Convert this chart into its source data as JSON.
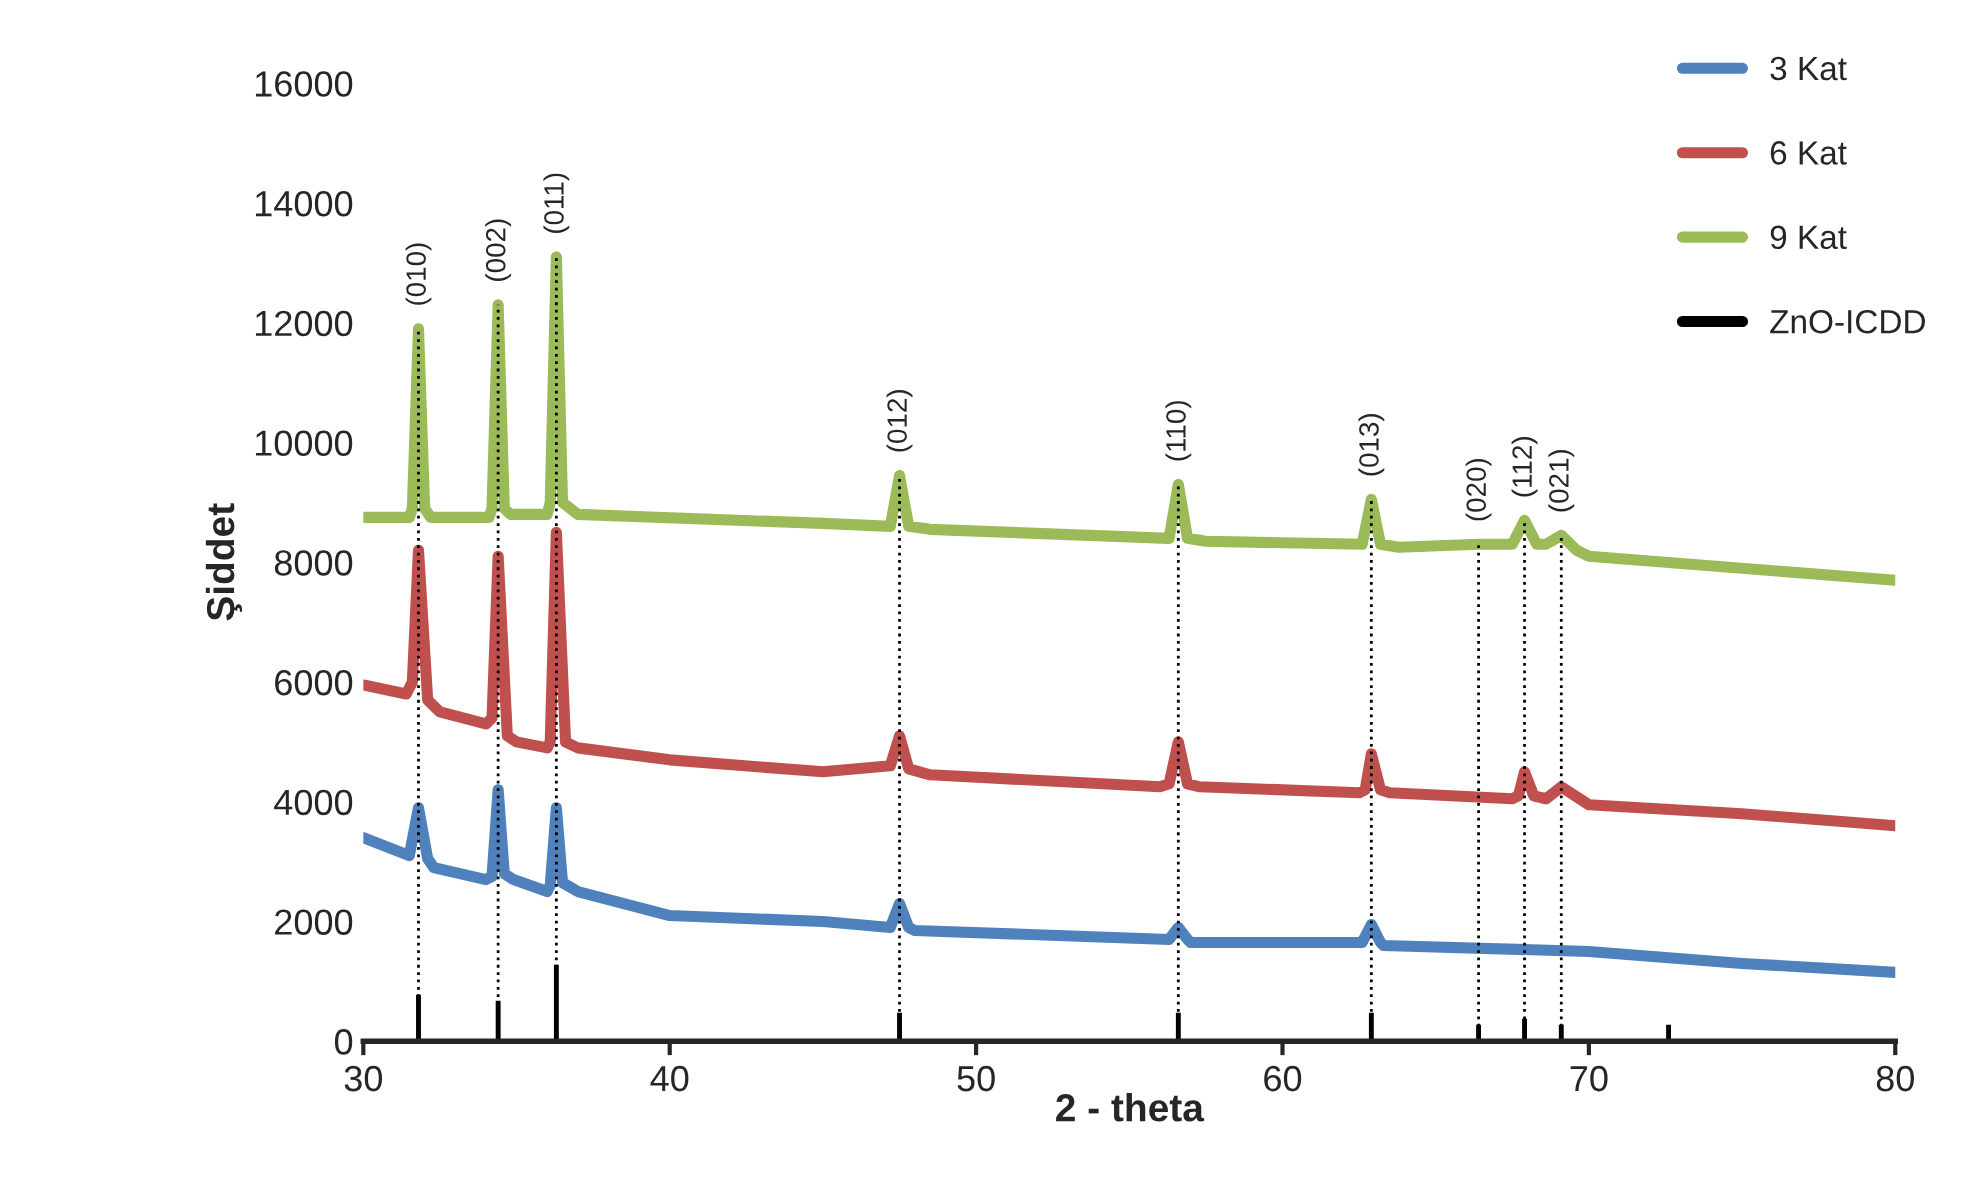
{
  "chart_data": {
    "type": "line",
    "xlabel": "2 - theta",
    "ylabel": "Şiddet",
    "xlim": [
      30,
      80
    ],
    "xticks": [
      30,
      40,
      50,
      60,
      70,
      80
    ],
    "ylim": [
      0,
      16000
    ],
    "yticks": [
      0,
      2000,
      4000,
      6000,
      8000,
      10000,
      12000,
      14000,
      16000
    ],
    "grid": false,
    "legend": "top right",
    "marker": "none",
    "line_style": "solid",
    "series": [
      {
        "name": "3 Kat",
        "color": "#4f81bd",
        "x": [
          30,
          31.5,
          31.8,
          32.1,
          32.3,
          34.0,
          34.2,
          34.4,
          34.6,
          34.9,
          36.0,
          36.1,
          36.3,
          36.5,
          37,
          40,
          45,
          47.2,
          47.5,
          47.8,
          48,
          56.3,
          56.6,
          56.9,
          57,
          62.6,
          62.9,
          63.2,
          63.3,
          70,
          75,
          80
        ],
        "values": [
          3400,
          3100,
          3900,
          3050,
          2900,
          2700,
          2750,
          4200,
          2800,
          2700,
          2500,
          2600,
          3900,
          2650,
          2500,
          2100,
          2000,
          1900,
          2300,
          1900,
          1850,
          1700,
          1900,
          1700,
          1650,
          1650,
          1950,
          1650,
          1600,
          1500,
          1300,
          1150
        ]
      },
      {
        "name": "6 Kat",
        "color": "#c0504d",
        "x": [
          30,
          31.4,
          31.6,
          31.8,
          32.1,
          32.5,
          34.0,
          34.2,
          34.4,
          34.7,
          35,
          36,
          36.1,
          36.3,
          36.6,
          37,
          40,
          45,
          47.2,
          47.5,
          47.8,
          48.5,
          56,
          56.3,
          56.6,
          56.9,
          57.3,
          62.5,
          62.7,
          62.9,
          63.2,
          63.5,
          67.5,
          67.7,
          67.9,
          68.2,
          68.6,
          69.1,
          70,
          75,
          80
        ],
        "values": [
          5950,
          5800,
          6000,
          8200,
          5700,
          5500,
          5300,
          5400,
          8100,
          5100,
          5000,
          4900,
          5000,
          8500,
          5000,
          4900,
          4700,
          4500,
          4600,
          5100,
          4550,
          4450,
          4250,
          4300,
          5000,
          4300,
          4250,
          4150,
          4200,
          4800,
          4200,
          4150,
          4050,
          4100,
          4500,
          4100,
          4050,
          4250,
          3950,
          3800,
          3600
        ]
      },
      {
        "name": "9 Kat",
        "color": "#9bbb59",
        "x": [
          30,
          31.5,
          31.6,
          31.8,
          32.0,
          32.2,
          34.1,
          34.2,
          34.4,
          34.6,
          34.8,
          36.0,
          36.1,
          36.3,
          36.5,
          37,
          45,
          47.2,
          47.5,
          47.8,
          48.5,
          56.3,
          56.6,
          56.9,
          57.5,
          62.6,
          62.9,
          63.2,
          63.8,
          66.4,
          67.5,
          67.9,
          68.3,
          68.6,
          69.1,
          69.6,
          70,
          80
        ],
        "values": [
          8750,
          8750,
          8900,
          11900,
          8900,
          8750,
          8750,
          8900,
          12300,
          8900,
          8800,
          8800,
          9000,
          13100,
          9000,
          8800,
          8650,
          8600,
          9450,
          8600,
          8550,
          8400,
          9300,
          8400,
          8350,
          8300,
          9050,
          8300,
          8250,
          8300,
          8300,
          8700,
          8300,
          8300,
          8450,
          8200,
          8100,
          7700
        ]
      },
      {
        "name": "ZnO-ICDD",
        "color": "#000000",
        "type": "bar",
        "x": [
          31.8,
          34.4,
          36.3,
          47.5,
          56.6,
          62.9,
          66.4,
          67.9,
          69.1,
          72.6
        ],
        "values": [
          800,
          700,
          1300,
          500,
          500,
          500,
          300,
          400,
          300,
          300
        ]
      }
    ],
    "annotations": [
      {
        "text": "(010)",
        "x": 31.8,
        "y": 11900
      },
      {
        "text": "(002)",
        "x": 34.4,
        "y": 12300
      },
      {
        "text": "(011)",
        "x": 36.3,
        "y": 13100
      },
      {
        "text": "(012)",
        "x": 47.5,
        "y": 9450
      },
      {
        "text": "(110)",
        "x": 56.6,
        "y": 9300
      },
      {
        "text": "(013)",
        "x": 62.9,
        "y": 9050
      },
      {
        "text": "(020)",
        "x": 66.4,
        "y": 8300
      },
      {
        "text": "(112)",
        "x": 67.9,
        "y": 8700
      },
      {
        "text": "(021)",
        "x": 69.1,
        "y": 8450
      }
    ],
    "ref_lines": [
      {
        "axis": "x",
        "value": 31.8,
        "line_style": "dotted",
        "color": "#000000"
      },
      {
        "axis": "x",
        "value": 34.4,
        "line_style": "dotted",
        "color": "#000000"
      },
      {
        "axis": "x",
        "value": 36.3,
        "line_style": "dotted",
        "color": "#000000"
      },
      {
        "axis": "x",
        "value": 47.5,
        "line_style": "dotted",
        "color": "#000000"
      },
      {
        "axis": "x",
        "value": 56.6,
        "line_style": "dotted",
        "color": "#000000"
      },
      {
        "axis": "x",
        "value": 62.9,
        "line_style": "dotted",
        "color": "#000000"
      },
      {
        "axis": "x",
        "value": 66.4,
        "line_style": "dotted",
        "color": "#000000"
      },
      {
        "axis": "x",
        "value": 67.9,
        "line_style": "dotted",
        "color": "#000000"
      },
      {
        "axis": "x",
        "value": 69.1,
        "line_style": "dotted",
        "color": "#000000"
      }
    ]
  }
}
